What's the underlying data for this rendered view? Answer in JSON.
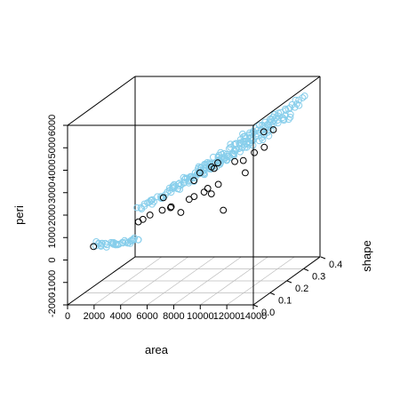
{
  "chart_data": {
    "type": "scatter",
    "projection": "3d-perspective",
    "xlabel": "area",
    "ylabel": "shape",
    "zlabel": "peri",
    "xlim": [
      0,
      14000
    ],
    "ylim": [
      0,
      0.4
    ],
    "zlim": [
      -2000,
      6000
    ],
    "x_ticks": [
      "0",
      "2000",
      "4000",
      "6000",
      "8000",
      "10000",
      "12000",
      "14000"
    ],
    "y_ticks": [
      "0.0",
      "0.1",
      "0.2",
      "0.3",
      "0.4"
    ],
    "z_ticks": [
      "-2000",
      "-1000",
      "0",
      "1000",
      "2000",
      "3000",
      "4000",
      "5000",
      "6000"
    ],
    "grid": true,
    "colors": {
      "fitted": "#87CEEB",
      "observed": "#000000",
      "box": "#000000",
      "grid": "#bbbbbb"
    },
    "series": [
      {
        "marker": "open-circle",
        "color": "#87CEEB",
        "groups": [
          {
            "x0": 1500,
            "x1": 4800,
            "y": 0.04,
            "z0": 450,
            "z1": 650,
            "n": 36
          },
          {
            "x0": 4500,
            "x1": 11500,
            "y": 0.07,
            "z0": 1900,
            "z1": 4300,
            "n": 64
          },
          {
            "x0": 6000,
            "x1": 13500,
            "y": 0.14,
            "z0": 2500,
            "z1": 4900,
            "n": 60
          },
          {
            "x0": 7000,
            "x1": 14000,
            "y": 0.22,
            "z0": 2900,
            "z1": 5300,
            "n": 52
          },
          {
            "x0": 8500,
            "x1": 14000,
            "y": 0.31,
            "z0": 3500,
            "z1": 5600,
            "n": 40
          }
        ]
      },
      {
        "marker": "open-circle",
        "color": "#000000",
        "points": [
          [
            1700,
            0.02,
            490
          ],
          [
            4700,
            0.05,
            1430
          ],
          [
            5300,
            0.03,
            1650
          ],
          [
            5700,
            0.04,
            1790
          ],
          [
            6500,
            0.05,
            1950
          ],
          [
            7000,
            0.06,
            2010
          ],
          [
            7300,
            0.04,
            2160
          ],
          [
            7900,
            0.05,
            1850
          ],
          [
            8400,
            0.06,
            2380
          ],
          [
            8900,
            0.05,
            2560
          ],
          [
            9400,
            0.07,
            2650
          ],
          [
            9800,
            0.06,
            2870
          ],
          [
            10200,
            0.05,
            2680
          ],
          [
            10600,
            0.06,
            3050
          ],
          [
            11100,
            0.05,
            1950
          ],
          [
            12500,
            0.07,
            3510
          ],
          [
            6200,
            0.08,
            2350
          ],
          [
            8700,
            0.1,
            3350
          ],
          [
            9900,
            0.09,
            3600
          ],
          [
            11200,
            0.11,
            3800
          ],
          [
            12100,
            0.09,
            3950
          ],
          [
            12800,
            0.1,
            4250
          ],
          [
            13300,
            0.12,
            4380
          ],
          [
            10300,
            0.08,
            3900
          ],
          [
            8000,
            0.12,
            2900
          ],
          [
            9200,
            0.13,
            3450
          ],
          [
            13600,
            0.15,
            5000
          ],
          [
            12500,
            0.18,
            4750
          ]
        ]
      }
    ]
  }
}
